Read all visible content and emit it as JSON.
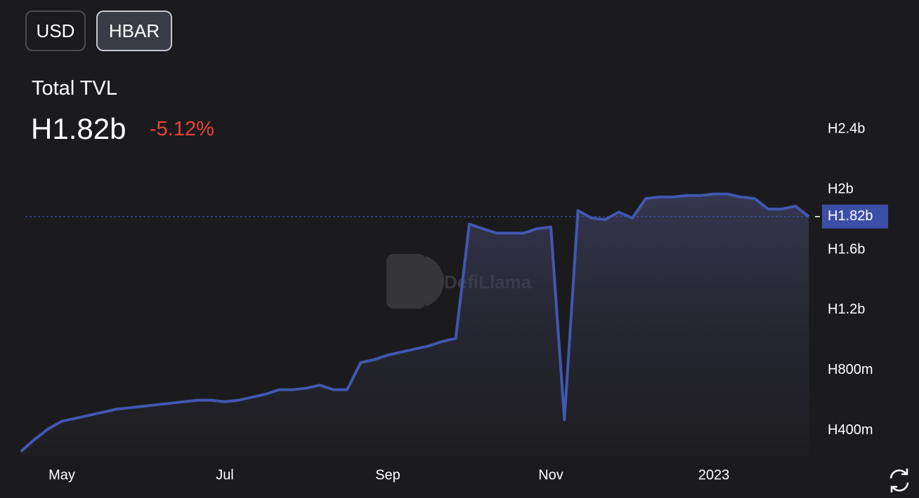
{
  "toolbar": {
    "buttons": [
      "USD",
      "HBAR"
    ]
  },
  "summary": {
    "value": "H1.82b",
    "change": "-5.12%"
  },
  "watermark": "DefiLlama",
  "chart_data": {
    "type": "line",
    "title": "Total TVL",
    "categories": [
      null,
      null,
      null,
      "May",
      null,
      null,
      null,
      null,
      null,
      null,
      null,
      null,
      null,
      null,
      null,
      "Jul",
      null,
      null,
      null,
      null,
      null,
      null,
      null,
      null,
      null,
      null,
      null,
      "Sep",
      null,
      null,
      null,
      null,
      null,
      null,
      null,
      null,
      null,
      null,
      null,
      "Nov",
      null,
      null,
      null,
      null,
      null,
      null,
      null,
      null,
      null,
      null,
      null,
      "2023",
      null,
      null,
      null,
      null,
      null,
      null,
      null
    ],
    "series": [
      {
        "color": "#4157b2",
        "values": [
          260000000,
          340000000,
          410000000,
          460000000,
          480000000,
          500000000,
          520000000,
          540000000,
          550000000,
          560000000,
          570000000,
          580000000,
          590000000,
          600000000,
          600000000,
          590000000,
          600000000,
          620000000,
          640000000,
          670000000,
          670000000,
          680000000,
          700000000,
          670000000,
          670000000,
          850000000,
          870000000,
          900000000,
          920000000,
          940000000,
          960000000,
          990000000,
          1010000000,
          1770000000,
          1740000000,
          1710000000,
          1710000000,
          1710000000,
          1740000000,
          1750000000,
          470000000,
          1860000000,
          1810000000,
          1800000000,
          1850000000,
          1810000000,
          1940000000,
          1950000000,
          1950000000,
          1960000000,
          1960000000,
          1970000000,
          1970000000,
          1950000000,
          1940000000,
          1870000000,
          1870000000,
          1890000000,
          1820000000
        ]
      }
    ],
    "ylim": [
      230000000,
      2560000000
    ],
    "yticks": [
      {
        "value": 400000000,
        "label": "H400m"
      },
      {
        "value": 800000000,
        "label": "H800m"
      },
      {
        "value": 1200000000,
        "label": "H1.2b"
      },
      {
        "value": 1600000000,
        "label": "H1.6b"
      },
      {
        "value": 2000000000,
        "label": "H2b"
      },
      {
        "value": 2400000000,
        "label": "H2.4b"
      }
    ],
    "grid": false
  }
}
